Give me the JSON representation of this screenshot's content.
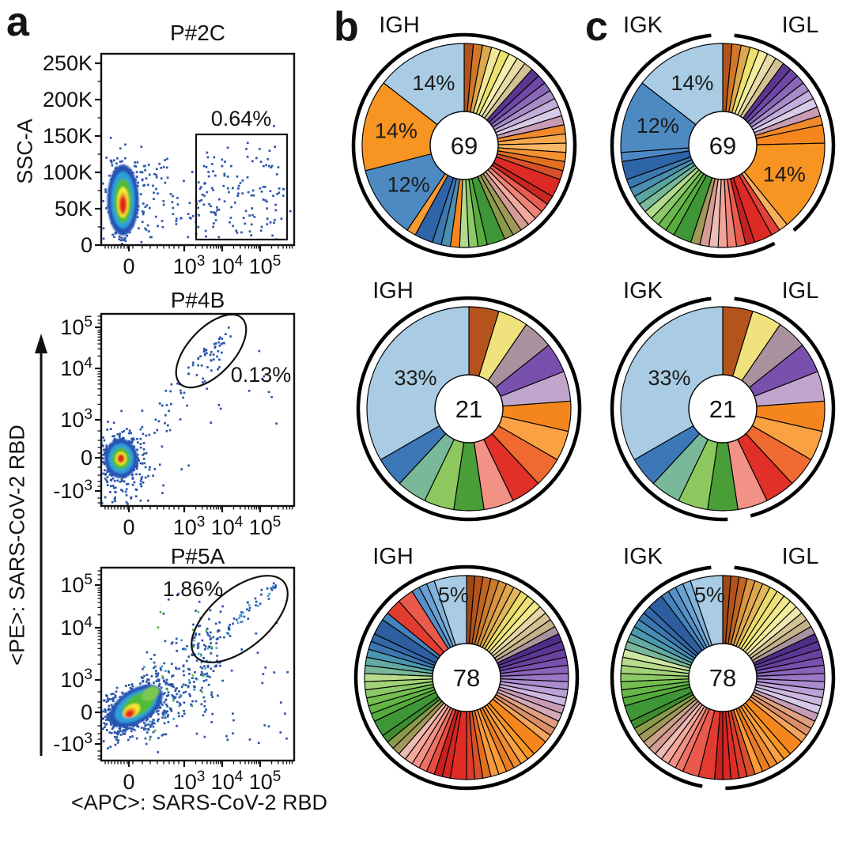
{
  "panel_letters": {
    "a": "a",
    "b": "b",
    "c": "c"
  },
  "axis_labels": {
    "ssc": "SSC-A",
    "pe": "<PE>: SARS-CoV-2 RBD",
    "apc": "<APC>: SARS-CoV-2 RBD"
  },
  "chart_data": [
    {
      "id": "flow-P2C",
      "type": "scatter",
      "panel": "a",
      "title": "P#2C",
      "xlabel": "<APC>: SARS-CoV-2 RBD (shared)",
      "ylabel": "SSC-A",
      "xticks": [
        "0",
        "10^3",
        "10^4",
        "10^5"
      ],
      "yticks": [
        "250K",
        "200K",
        "150K",
        "100K",
        "50K",
        "0"
      ],
      "ylim": [
        "0",
        "250K"
      ],
      "xscale": "biexponential",
      "gate": {
        "shape": "rect",
        "label": "0.64%"
      },
      "description": "pseudocolor density dot plot; dense population near x=0, y=50K; sparse RBD+ events gated in rectangle at x>10^3"
    },
    {
      "id": "flow-P4B",
      "type": "scatter",
      "panel": "a",
      "title": "P#4B",
      "ylabel": "<PE>: SARS-CoV-2 RBD",
      "xticks": [
        "0",
        "10^3",
        "10^4",
        "10^5"
      ],
      "yticks": [
        "10^5",
        "10^4",
        "10^3",
        "0",
        "-10^3"
      ],
      "xscale": "biexponential",
      "yscale": "biexponential",
      "gate": {
        "shape": "ellipse",
        "label": "0.13%"
      },
      "description": "dense double-negative cluster at origin; diagonal double-positive events gated in ellipse at top right"
    },
    {
      "id": "flow-P5A",
      "type": "scatter",
      "panel": "a",
      "title": "P#5A",
      "xlabel": "<APC>: SARS-CoV-2 RBD",
      "ylabel": "<PE>: SARS-CoV-2 RBD",
      "xticks": [
        "0",
        "10^3",
        "10^4",
        "10^5"
      ],
      "yticks": [
        "10^5",
        "10^4",
        "10^3",
        "0",
        "-10^3"
      ],
      "xscale": "biexponential",
      "yscale": "biexponential",
      "gate": {
        "shape": "ellipse",
        "label": "1.86%"
      },
      "description": "broad diagonal double-positive smear; tight diagonal cluster gated in ellipse at top right"
    },
    {
      "id": "pie-IGH-69",
      "type": "pie",
      "panel": "b",
      "heading": "IGH",
      "center_count": "69",
      "total": 69,
      "ring": "full",
      "percent_labels": [
        {
          "text": "14%",
          "angle": 334,
          "r": 88
        },
        {
          "text": "14%",
          "angle": 282,
          "r": 88
        },
        {
          "text": "12%",
          "angle": 235,
          "r": 86
        }
      ],
      "slices": [
        [
          1,
          "#b4541c"
        ],
        [
          1,
          "#d07828"
        ],
        [
          1,
          "#dca84e"
        ],
        [
          1,
          "#f2e795"
        ],
        [
          1,
          "#ede26e"
        ],
        [
          1,
          "#f6efae"
        ],
        [
          1,
          "#e8dca8"
        ],
        [
          1,
          "#d3c294"
        ],
        [
          1,
          "#5b3794"
        ],
        [
          1,
          "#7048a8"
        ],
        [
          1,
          "#8a68b8"
        ],
        [
          1,
          "#a88cc8"
        ],
        [
          1,
          "#c2aeda"
        ],
        [
          1,
          "#d9cbe8"
        ],
        [
          1,
          "#c89cb4"
        ],
        [
          1,
          "#f08a2c"
        ],
        [
          1,
          "#f8a94e"
        ],
        [
          1,
          "#f9b666"
        ],
        [
          1,
          "#f49132"
        ],
        [
          1,
          "#e2701f"
        ],
        [
          1,
          "#d8502a"
        ],
        [
          2,
          "#dd2a24"
        ],
        [
          1,
          "#c82620"
        ],
        [
          1,
          "#e85b50"
        ],
        [
          1,
          "#ee8377"
        ],
        [
          1,
          "#f2a99e"
        ],
        [
          1,
          "#d49c94"
        ],
        [
          1,
          "#a09858"
        ],
        [
          1,
          "#8a9a4a"
        ],
        [
          2,
          "#3f9636"
        ],
        [
          1,
          "#57ac3e"
        ],
        [
          1,
          "#8cc968"
        ],
        [
          1,
          "#b2d98c"
        ],
        [
          1,
          "#f5861e"
        ],
        [
          1,
          "#4a8fb0"
        ],
        [
          1,
          "#3c78b0"
        ],
        [
          2,
          "#2e64a8"
        ],
        [
          1,
          "#f79a33"
        ],
        [
          8,
          "#4e8ac2"
        ],
        [
          10,
          "#f79422"
        ],
        [
          10,
          "#a9cce4"
        ]
      ]
    },
    {
      "id": "pie-IGKL-69",
      "type": "pie",
      "panel": "c",
      "heading_left": "IGK",
      "heading_right": "IGL",
      "center_count": "69",
      "total": 69,
      "ring": "split",
      "split_cells": 28,
      "percent_labels": [
        {
          "text": "14%",
          "angle": 334,
          "r": 88
        },
        {
          "text": "12%",
          "angle": 287,
          "r": 86
        },
        {
          "text": "14%",
          "angle": 115,
          "r": 86
        }
      ],
      "slices": [
        [
          1,
          "#b4541c"
        ],
        [
          1,
          "#d07828"
        ],
        [
          1,
          "#dca84e"
        ],
        [
          1,
          "#ede26e"
        ],
        [
          1,
          "#f4eda0"
        ],
        [
          1,
          "#e8dca8"
        ],
        [
          1,
          "#d3c294"
        ],
        [
          1,
          "#5b3794"
        ],
        [
          1,
          "#7048a8"
        ],
        [
          1,
          "#8a68b8"
        ],
        [
          1,
          "#a88cc8"
        ],
        [
          1,
          "#c2aeda"
        ],
        [
          1,
          "#d9cbe8"
        ],
        [
          1,
          "#c89cb4"
        ],
        [
          1,
          "#f08a2c"
        ],
        [
          2,
          "#f5861e"
        ],
        [
          10,
          "#f79422"
        ],
        [
          1,
          "#f9b05c"
        ],
        [
          1,
          "#e0423a"
        ],
        [
          2,
          "#dd2a24"
        ],
        [
          1,
          "#c32222"
        ],
        [
          1,
          "#ea5a4c"
        ],
        [
          1,
          "#ee8377"
        ],
        [
          1,
          "#f2a49a"
        ],
        [
          1,
          "#edbbb2"
        ],
        [
          1,
          "#d49c94"
        ],
        [
          1,
          "#a09858"
        ],
        [
          2,
          "#3f9636"
        ],
        [
          1,
          "#57ac3e"
        ],
        [
          1,
          "#6cb84e"
        ],
        [
          1,
          "#8cc968"
        ],
        [
          1,
          "#b2d98c"
        ],
        [
          1,
          "#7ab89a"
        ],
        [
          1,
          "#5aa4a0"
        ],
        [
          1,
          "#4a8fb0"
        ],
        [
          1,
          "#3c78b0"
        ],
        [
          2,
          "#2e64a8"
        ],
        [
          1,
          "#4c88c4"
        ],
        [
          8,
          "#4e8ac2"
        ],
        [
          10,
          "#a9cce4"
        ]
      ]
    },
    {
      "id": "pie-IGH-21",
      "type": "pie",
      "panel": "b",
      "heading": "IGH",
      "center_count": "21",
      "total": 21,
      "ring": "full",
      "percent_labels": [
        {
          "text": "33%",
          "angle": 300,
          "r": 78
        }
      ],
      "slices": [
        [
          1,
          "#b4541c"
        ],
        [
          1,
          "#f0e27c"
        ],
        [
          1,
          "#a9929e"
        ],
        [
          1,
          "#7a50ae"
        ],
        [
          1,
          "#c0a6cc"
        ],
        [
          1,
          "#f5861e"
        ],
        [
          1,
          "#f9a143"
        ],
        [
          1,
          "#ef6a30"
        ],
        [
          1,
          "#e03028"
        ],
        [
          1,
          "#f29286"
        ],
        [
          1,
          "#4a9e38"
        ],
        [
          1,
          "#8cc85e"
        ],
        [
          1,
          "#7ab89a"
        ],
        [
          1,
          "#3c78b8"
        ],
        [
          7,
          "#a9cce4"
        ]
      ]
    },
    {
      "id": "pie-IGKL-21",
      "type": "pie",
      "panel": "c",
      "heading_left": "IGK",
      "heading_right": "IGL",
      "center_count": "21",
      "total": 21,
      "ring": "split",
      "split_cells": 10,
      "percent_labels": [
        {
          "text": "33%",
          "angle": 300,
          "r": 78
        }
      ],
      "slices": [
        [
          1,
          "#b4541c"
        ],
        [
          1,
          "#f0e27c"
        ],
        [
          1,
          "#a9929e"
        ],
        [
          1,
          "#7a50ae"
        ],
        [
          1,
          "#c0a6cc"
        ],
        [
          1,
          "#f5861e"
        ],
        [
          1,
          "#f9a143"
        ],
        [
          1,
          "#ef6a30"
        ],
        [
          1,
          "#e03028"
        ],
        [
          1,
          "#f29286"
        ],
        [
          1,
          "#4a9e38"
        ],
        [
          1,
          "#8cc85e"
        ],
        [
          1,
          "#7ab89a"
        ],
        [
          1,
          "#3c78b8"
        ],
        [
          7,
          "#a9cce4"
        ]
      ]
    },
    {
      "id": "pie-IGH-78",
      "type": "pie",
      "panel": "b",
      "heading": "IGH",
      "center_count": "78",
      "total": 78,
      "ring": "full",
      "percent_labels": [
        {
          "text": "5%",
          "angle": 351,
          "r": 106
        }
      ],
      "slices": [
        [
          1,
          "#9e4a16"
        ],
        [
          1,
          "#b4541c"
        ],
        [
          1,
          "#c06524"
        ],
        [
          1,
          "#cc7a2e"
        ],
        [
          1,
          "#d89440"
        ],
        [
          1,
          "#dca84e"
        ],
        [
          1,
          "#e2b75c"
        ],
        [
          1,
          "#eadc6a"
        ],
        [
          1,
          "#efe27a"
        ],
        [
          1,
          "#f2e88c"
        ],
        [
          1,
          "#e5d6a8"
        ],
        [
          1,
          "#d3c294"
        ],
        [
          1,
          "#c4b28a"
        ],
        [
          1,
          "#a9929e"
        ],
        [
          1,
          "#4e2f86"
        ],
        [
          1,
          "#5b3794"
        ],
        [
          1,
          "#6a42a0"
        ],
        [
          1,
          "#7a50ae"
        ],
        [
          1,
          "#8a64ba"
        ],
        [
          1,
          "#9a78c4"
        ],
        [
          1,
          "#ab8cce"
        ],
        [
          1,
          "#bca2d8"
        ],
        [
          1,
          "#cdb8e2"
        ],
        [
          1,
          "#c89cb4"
        ],
        [
          1,
          "#d4aab8"
        ],
        [
          1,
          "#e0a080"
        ],
        [
          1,
          "#d98f6a"
        ],
        [
          1,
          "#f2a55a"
        ],
        [
          2,
          "#f5861e"
        ],
        [
          1,
          "#f79422"
        ],
        [
          1,
          "#f9a143"
        ],
        [
          1,
          "#ef8c30"
        ],
        [
          1,
          "#e87c24"
        ],
        [
          1,
          "#fb9b36"
        ],
        [
          1,
          "#f4983e"
        ],
        [
          1,
          "#e2701f"
        ],
        [
          1,
          "#d8502a"
        ],
        [
          1,
          "#dd3c2a"
        ],
        [
          2,
          "#e02c24"
        ],
        [
          1,
          "#d42622"
        ],
        [
          1,
          "#c82220"
        ],
        [
          1,
          "#e84c40"
        ],
        [
          1,
          "#ee7365"
        ],
        [
          1,
          "#f29286"
        ],
        [
          1,
          "#f4a89c"
        ],
        [
          1,
          "#edbbb2"
        ],
        [
          1,
          "#a09858"
        ],
        [
          1,
          "#8a9a4a"
        ],
        [
          1,
          "#3f8c30"
        ],
        [
          2,
          "#3f9636"
        ],
        [
          1,
          "#55aa3c"
        ],
        [
          1,
          "#64b446"
        ],
        [
          1,
          "#74be52"
        ],
        [
          1,
          "#8cc968"
        ],
        [
          1,
          "#a2d278"
        ],
        [
          1,
          "#b8dc8c"
        ],
        [
          1,
          "#7ab89a"
        ],
        [
          1,
          "#62aaa2"
        ],
        [
          1,
          "#4a98b0"
        ],
        [
          1,
          "#3c78b0"
        ],
        [
          1,
          "#3468a8"
        ],
        [
          2,
          "#2e5ea0"
        ],
        [
          1,
          "#4683bc"
        ],
        [
          2,
          "#e23c30"
        ],
        [
          2,
          "#ea5a4c"
        ],
        [
          1,
          "#5590c8"
        ],
        [
          1,
          "#6ba0d2"
        ],
        [
          1,
          "#82b2dc"
        ],
        [
          4,
          "#a9cce4"
        ]
      ]
    },
    {
      "id": "pie-IGKL-78",
      "type": "pie",
      "panel": "c",
      "heading_left": "IGK",
      "heading_right": "IGL",
      "center_count": "78",
      "total": 78,
      "ring": "split",
      "split_cells": 40,
      "percent_labels": [
        {
          "text": "5%",
          "angle": 351,
          "r": 106
        }
      ],
      "slices": [
        [
          1,
          "#9e4a16"
        ],
        [
          1,
          "#b4541c"
        ],
        [
          1,
          "#c06524"
        ],
        [
          1,
          "#d89440"
        ],
        [
          1,
          "#dca84e"
        ],
        [
          1,
          "#e2b75c"
        ],
        [
          1,
          "#eadc6a"
        ],
        [
          1,
          "#efe27a"
        ],
        [
          1,
          "#f2e88c"
        ],
        [
          1,
          "#f5ee9e"
        ],
        [
          1,
          "#f0e8b0"
        ],
        [
          1,
          "#d3c294"
        ],
        [
          1,
          "#c4b28a"
        ],
        [
          1,
          "#a9929e"
        ],
        [
          1,
          "#4e2f86"
        ],
        [
          1,
          "#5b3794"
        ],
        [
          1,
          "#6a42a0"
        ],
        [
          1,
          "#7a50ae"
        ],
        [
          1,
          "#8a64ba"
        ],
        [
          1,
          "#9a78c4"
        ],
        [
          1,
          "#ab8cce"
        ],
        [
          1,
          "#bca2d8"
        ],
        [
          1,
          "#cdb8e2"
        ],
        [
          1,
          "#d7c9e8"
        ],
        [
          1,
          "#c89cb4"
        ],
        [
          1,
          "#e0a080"
        ],
        [
          1,
          "#d98f6a"
        ],
        [
          1,
          "#f2a55a"
        ],
        [
          2,
          "#f5861e"
        ],
        [
          1,
          "#f79422"
        ],
        [
          1,
          "#f9a143"
        ],
        [
          1,
          "#ef8c30"
        ],
        [
          1,
          "#e87c24"
        ],
        [
          1,
          "#fb9b36"
        ],
        [
          1,
          "#d8502a"
        ],
        [
          1,
          "#dd3c2a"
        ],
        [
          1,
          "#e02c24"
        ],
        [
          1,
          "#d42622"
        ],
        [
          1,
          "#c82220"
        ],
        [
          2,
          "#e23c30"
        ],
        [
          2,
          "#ea5a4c"
        ],
        [
          1,
          "#ee7365"
        ],
        [
          1,
          "#f29286"
        ],
        [
          1,
          "#f4a89c"
        ],
        [
          1,
          "#edbbb2"
        ],
        [
          1,
          "#d49c94"
        ],
        [
          1,
          "#c9a288"
        ],
        [
          1,
          "#a09858"
        ],
        [
          1,
          "#8a9a4a"
        ],
        [
          1,
          "#3f8c30"
        ],
        [
          2,
          "#3f9636"
        ],
        [
          1,
          "#55aa3c"
        ],
        [
          1,
          "#64b446"
        ],
        [
          1,
          "#74be52"
        ],
        [
          1,
          "#8cc968"
        ],
        [
          1,
          "#a2d278"
        ],
        [
          1,
          "#b8dc8c"
        ],
        [
          1,
          "#cce6a2"
        ],
        [
          1,
          "#7ab89a"
        ],
        [
          1,
          "#62aaa2"
        ],
        [
          1,
          "#4a98b0"
        ],
        [
          1,
          "#478eb4"
        ],
        [
          1,
          "#3c78b0"
        ],
        [
          1,
          "#3468a8"
        ],
        [
          2,
          "#2e5ea0"
        ],
        [
          1,
          "#4683bc"
        ],
        [
          1,
          "#5590c8"
        ],
        [
          1,
          "#6ba0d2"
        ],
        [
          1,
          "#82b2dc"
        ],
        [
          4,
          "#a9cce4"
        ]
      ]
    }
  ],
  "style_colors": {
    "dot_blue": "#2b56ab",
    "density_blue": "#2553b2",
    "density_cyan": "#2f9fd9",
    "density_green": "#4fbc3a",
    "density_yellow": "#f3e830",
    "density_red": "#e1251b",
    "axis_black": "#111111"
  }
}
